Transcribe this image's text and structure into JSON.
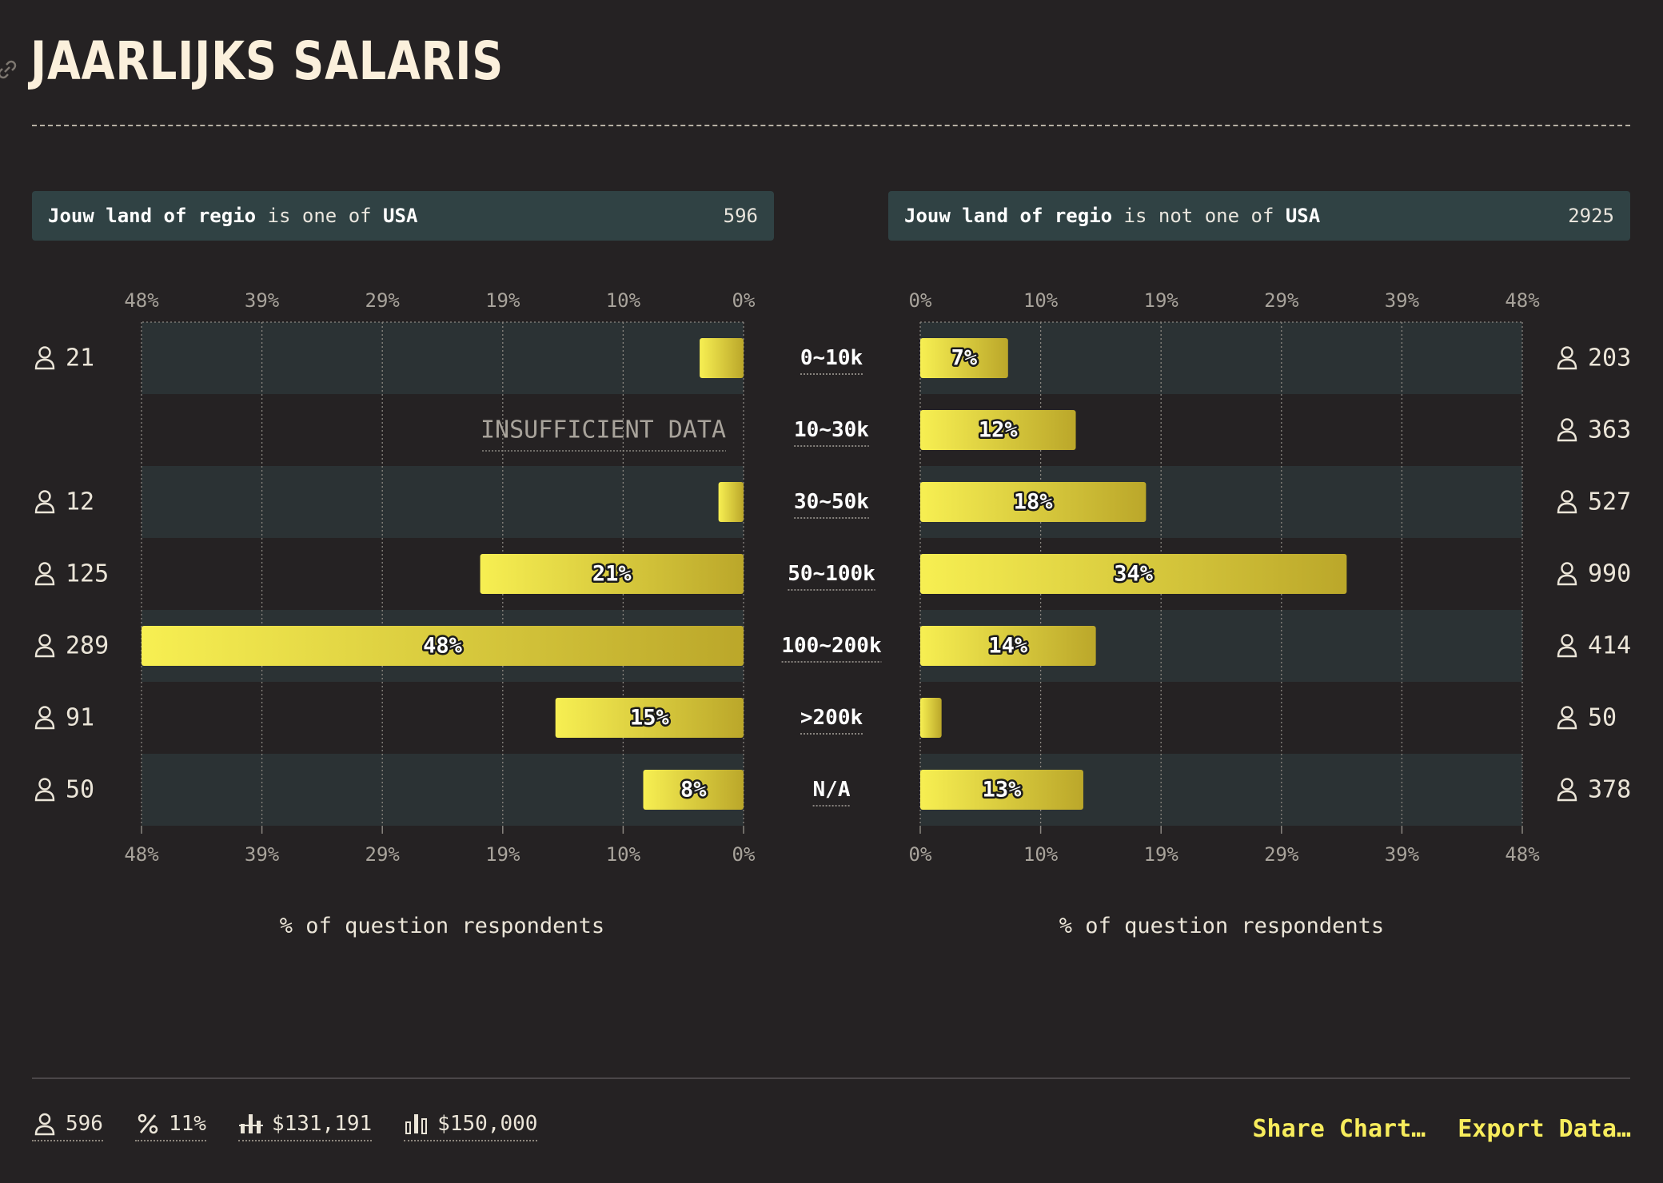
{
  "title": "JAARLIJKS SALARIS",
  "panels": {
    "left": {
      "field": "Jouw land of regio",
      "op": "is one of",
      "value": "USA",
      "count": "596"
    },
    "right": {
      "field": "Jouw land of regio",
      "op": "is not one of",
      "value": "USA",
      "count": "2925"
    }
  },
  "axis_label": "% of question respondents",
  "insufficient_label": "INSUFFICIENT DATA",
  "chart_data": {
    "type": "bar",
    "categories": [
      "0~10k",
      "10~30k",
      "30~50k",
      "50~100k",
      "100~200k",
      ">200k",
      "N/A"
    ],
    "axis_ticks": [
      "0%",
      "10%",
      "19%",
      "29%",
      "39%",
      "48%"
    ],
    "xlim": [
      0,
      48
    ],
    "series": [
      {
        "name": "Jouw land of regio is one of USA",
        "values": [
          3.5,
          null,
          2,
          21,
          48,
          15,
          8
        ],
        "value_labels": [
          "",
          "",
          "",
          "21%",
          "48%",
          "15%",
          "8%"
        ],
        "counts": [
          "21",
          "",
          "12",
          "125",
          "289",
          "91",
          "50"
        ]
      },
      {
        "name": "Jouw land of regio is not one of USA",
        "values": [
          7,
          12.4,
          18,
          34,
          14,
          1.7,
          13
        ],
        "value_labels": [
          "7%",
          "12%",
          "18%",
          "34%",
          "14%",
          "",
          "13%"
        ],
        "counts": [
          "203",
          "363",
          "527",
          "990",
          "414",
          "50",
          "378"
        ]
      }
    ]
  },
  "stats": [
    {
      "icon": "person-icon",
      "label": "596"
    },
    {
      "icon": "percent-icon",
      "label": "11%"
    },
    {
      "icon": "average-bars-icon",
      "label": "$131,191"
    },
    {
      "icon": "median-bars-icon",
      "label": "$150,000"
    }
  ],
  "actions": {
    "share": "Share Chart…",
    "export": "Export Data…"
  },
  "colors": {
    "bar_start": "#f7ef52",
    "bar_end": "#bba72a",
    "row_band": "#2b3234",
    "background": "#252223",
    "header": "#304244"
  }
}
